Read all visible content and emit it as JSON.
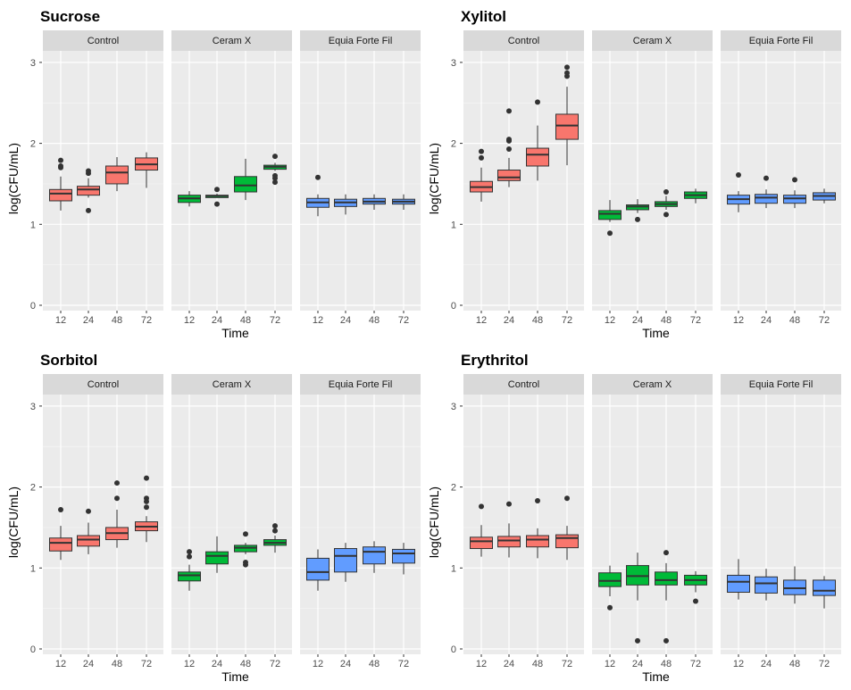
{
  "chart_data": {
    "type": "boxplot",
    "facets": [
      "Control",
      "Ceram X",
      "Equia Forte Fil"
    ],
    "categories": [
      "12",
      "24",
      "48",
      "72"
    ],
    "xlabel": "Time",
    "ylabel": "log(CFU/mL)",
    "ylim": [
      0,
      3.2
    ],
    "yticks": [
      "0",
      "1",
      "2",
      "3"
    ],
    "grid": true,
    "colors": {
      "Control": "#F8766D",
      "Ceram X": "#00BA38",
      "Equia Forte Fil": "#619CFF"
    },
    "box_stat_order": [
      "whisker_low",
      "q1",
      "median",
      "q3",
      "whisker_high"
    ],
    "panels": [
      {
        "title": "Sucrose",
        "data": {
          "Control": [
            [
              1.17,
              1.29,
              1.38,
              1.43,
              1.59,
              [
                1.7,
                1.72,
                1.79
              ]
            ],
            [
              1.33,
              1.36,
              1.43,
              1.47,
              1.57,
              [
                1.17,
                1.63,
                1.66
              ]
            ],
            [
              1.41,
              1.5,
              1.64,
              1.72,
              1.83,
              []
            ],
            [
              1.45,
              1.67,
              1.74,
              1.82,
              1.89,
              []
            ]
          ],
          "Ceram X": [
            [
              1.22,
              1.27,
              1.32,
              1.36,
              1.41,
              []
            ],
            [
              1.33,
              1.33,
              1.35,
              1.36,
              1.38,
              [
                1.25,
                1.43
              ]
            ],
            [
              1.3,
              1.4,
              1.48,
              1.59,
              1.81,
              []
            ],
            [
              1.66,
              1.68,
              1.71,
              1.73,
              1.76,
              [
                1.52,
                1.57,
                1.6,
                1.84
              ]
            ]
          ],
          "Equia Forte Fil": [
            [
              1.1,
              1.21,
              1.27,
              1.32,
              1.37,
              [
                1.58
              ]
            ],
            [
              1.12,
              1.22,
              1.27,
              1.31,
              1.37,
              []
            ],
            [
              1.18,
              1.25,
              1.28,
              1.32,
              1.37,
              []
            ],
            [
              1.18,
              1.25,
              1.28,
              1.31,
              1.37,
              []
            ]
          ]
        }
      },
      {
        "title": "Xylitol",
        "data": {
          "Control": [
            [
              1.28,
              1.4,
              1.46,
              1.53,
              1.7,
              [
                1.82,
                1.9
              ]
            ],
            [
              1.46,
              1.54,
              1.58,
              1.67,
              1.82,
              [
                1.93,
                2.03,
                2.05,
                2.4
              ]
            ],
            [
              1.54,
              1.72,
              1.86,
              1.94,
              2.22,
              [
                2.51
              ]
            ],
            [
              1.73,
              2.05,
              2.22,
              2.36,
              2.7,
              [
                2.83,
                2.87,
                2.94
              ]
            ]
          ],
          "Ceram X": [
            [
              1.03,
              1.06,
              1.13,
              1.17,
              1.3,
              [
                0.89
              ]
            ],
            [
              1.14,
              1.18,
              1.22,
              1.24,
              1.31,
              [
                1.06
              ]
            ],
            [
              1.18,
              1.22,
              1.25,
              1.28,
              1.35,
              [
                1.12,
                1.4
              ]
            ],
            [
              1.26,
              1.32,
              1.36,
              1.4,
              1.44,
              []
            ]
          ],
          "Equia Forte Fil": [
            [
              1.15,
              1.25,
              1.31,
              1.36,
              1.41,
              [
                1.61
              ]
            ],
            [
              1.2,
              1.26,
              1.33,
              1.37,
              1.43,
              [
                1.57
              ]
            ],
            [
              1.2,
              1.26,
              1.32,
              1.36,
              1.42,
              [
                1.55
              ]
            ],
            [
              1.26,
              1.3,
              1.35,
              1.39,
              1.44,
              []
            ]
          ]
        }
      },
      {
        "title": "Sorbitol",
        "data": {
          "Control": [
            [
              1.1,
              1.21,
              1.31,
              1.37,
              1.52,
              [
                1.72
              ]
            ],
            [
              1.17,
              1.27,
              1.35,
              1.4,
              1.56,
              [
                1.7
              ]
            ],
            [
              1.25,
              1.35,
              1.43,
              1.5,
              1.72,
              [
                1.86,
                2.05
              ]
            ],
            [
              1.32,
              1.46,
              1.51,
              1.57,
              1.64,
              [
                1.75,
                1.82,
                1.86,
                2.11
              ]
            ]
          ],
          "Ceram X": [
            [
              0.72,
              0.84,
              0.91,
              0.95,
              1.04,
              [
                1.14,
                1.2
              ]
            ],
            [
              0.94,
              1.05,
              1.15,
              1.2,
              1.39,
              []
            ],
            [
              1.17,
              1.2,
              1.25,
              1.28,
              1.31,
              [
                1.04,
                1.07,
                1.42
              ]
            ],
            [
              1.19,
              1.28,
              1.31,
              1.35,
              1.4,
              [
                1.46,
                1.52
              ]
            ]
          ],
          "Equia Forte Fil": [
            [
              0.72,
              0.85,
              0.95,
              1.12,
              1.23,
              []
            ],
            [
              0.83,
              0.95,
              1.15,
              1.24,
              1.31,
              []
            ],
            [
              0.94,
              1.05,
              1.2,
              1.26,
              1.33,
              []
            ],
            [
              0.92,
              1.06,
              1.18,
              1.23,
              1.31,
              []
            ]
          ]
        }
      },
      {
        "title": "Erythritol",
        "data": {
          "Control": [
            [
              1.14,
              1.24,
              1.33,
              1.38,
              1.53,
              [
                1.76
              ]
            ],
            [
              1.13,
              1.26,
              1.34,
              1.39,
              1.55,
              [
                1.79
              ]
            ],
            [
              1.12,
              1.26,
              1.35,
              1.4,
              1.49,
              [
                1.83
              ]
            ],
            [
              1.1,
              1.25,
              1.37,
              1.41,
              1.52,
              [
                1.86
              ]
            ]
          ],
          "Ceram X": [
            [
              0.65,
              0.77,
              0.84,
              0.94,
              1.03,
              [
                0.51
              ]
            ],
            [
              0.6,
              0.79,
              0.9,
              1.03,
              1.19,
              [
                0.1
              ]
            ],
            [
              0.6,
              0.79,
              0.85,
              0.95,
              1.06,
              [
                0.1,
                1.19
              ]
            ],
            [
              0.7,
              0.79,
              0.85,
              0.91,
              0.96,
              [
                0.59
              ]
            ]
          ],
          "Equia Forte Fil": [
            [
              0.61,
              0.7,
              0.83,
              0.91,
              1.11,
              []
            ],
            [
              0.6,
              0.69,
              0.81,
              0.89,
              0.99,
              []
            ],
            [
              0.56,
              0.67,
              0.75,
              0.85,
              1.02,
              []
            ],
            [
              0.5,
              0.66,
              0.72,
              0.85,
              0.9,
              []
            ]
          ]
        }
      }
    ]
  }
}
